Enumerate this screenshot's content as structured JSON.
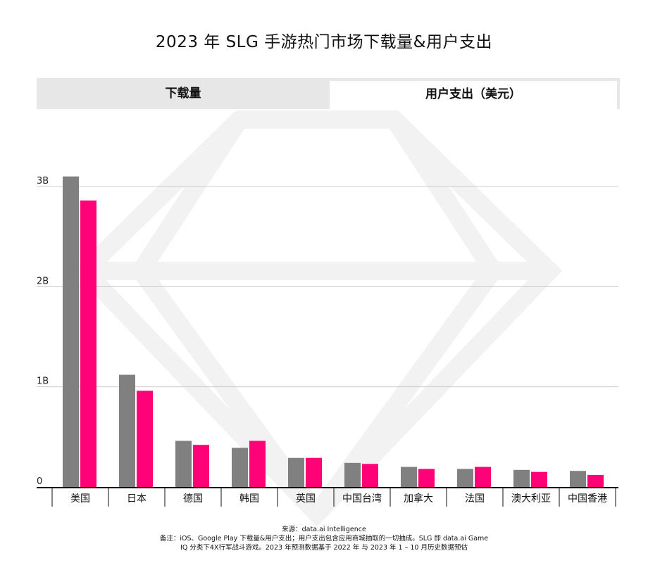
{
  "title": "2023 年 SLG 手游热门市场下载量&用户支出",
  "tabs": [
    {
      "label": "下载量",
      "active": false
    },
    {
      "label": "用户支出（美元）",
      "active": true
    }
  ],
  "footer": {
    "source": "来源：data.ai Intelligence",
    "note_line1": "备注：iOS、Google Play 下载量&用户支出；用户支出包含应用商城抽取的一切抽成。SLG 即 data.ai Game",
    "note_line2": "IQ 分类下4X行军战斗游戏。2023 年预测数据基于 2022 年 与 2023 年 1 – 10 月历史数据预估"
  },
  "colors": {
    "downloads": "#808080",
    "spend": "#ff0277",
    "grid": "#cccccc",
    "watermark": "#f2f2f2"
  },
  "chart_data": {
    "type": "bar",
    "categories": [
      "美国",
      "日本",
      "德国",
      "韩国",
      "英国",
      "中国台湾",
      "加拿大",
      "法国",
      "澳大利亚",
      "中国香港"
    ],
    "series": [
      {
        "name": "下载量",
        "values": [
          3.1,
          1.12,
          0.46,
          0.39,
          0.29,
          0.24,
          0.2,
          0.18,
          0.17,
          0.16
        ]
      },
      {
        "name": "用户支出（美元）",
        "values": [
          2.86,
          0.96,
          0.42,
          0.46,
          0.29,
          0.23,
          0.18,
          0.2,
          0.15,
          0.12
        ]
      }
    ],
    "yticks": [
      {
        "value": 0,
        "label": "0"
      },
      {
        "value": 1,
        "label": "1B"
      },
      {
        "value": 2,
        "label": "2B"
      },
      {
        "value": 3,
        "label": "3B"
      }
    ],
    "ylim": [
      0,
      3.2
    ],
    "xlabel": "",
    "ylabel": ""
  }
}
